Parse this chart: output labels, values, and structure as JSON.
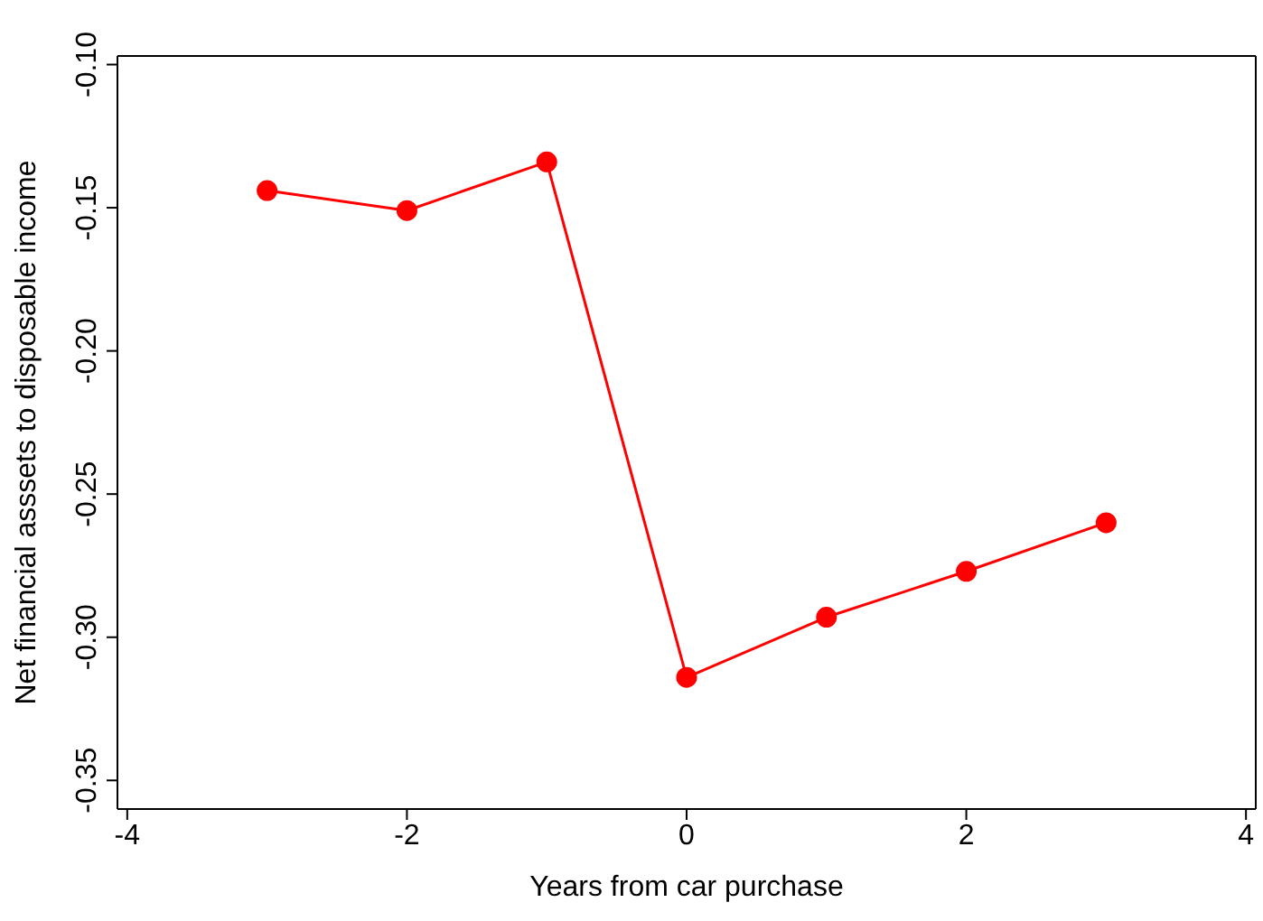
{
  "chart_data": {
    "type": "line",
    "xlabel": "Years from car purchase",
    "ylabel": "Net financial asssets to disposable income",
    "x": [
      -3,
      -2,
      -1,
      0,
      1,
      2,
      3
    ],
    "series": [
      {
        "color": "#ff0000",
        "values": [
          -0.144,
          -0.151,
          -0.134,
          -0.314,
          -0.293,
          -0.277,
          -0.26
        ]
      }
    ],
    "xlim": [
      -4.07,
      4.07
    ],
    "xticks": [
      -4,
      -2,
      0,
      2,
      4
    ],
    "ylim": [
      -0.36,
      -0.097
    ],
    "yticks": [
      {
        "value": -0.35,
        "label": "-0.35"
      },
      {
        "value": -0.3,
        "label": "-0.30"
      },
      {
        "value": -0.25,
        "label": "-0.25"
      },
      {
        "value": -0.2,
        "label": "-0.20"
      },
      {
        "value": -0.15,
        "label": "-0.15"
      },
      {
        "value": -0.1,
        "label": "-0.10"
      }
    ],
    "marker": "circle",
    "line_style": "solid",
    "grid": false,
    "legend": false
  }
}
